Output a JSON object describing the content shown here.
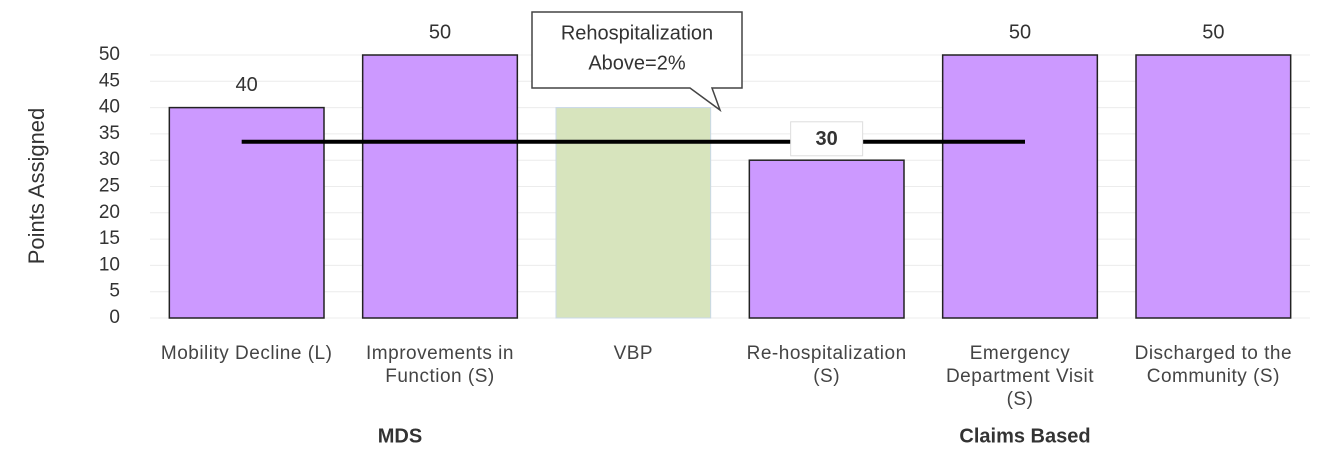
{
  "chart_data": {
    "type": "bar",
    "y_label": "Points Assigned",
    "categories": [
      "Mobility Decline (L)",
      "Improvements in Function (S)",
      "VBP",
      "Re-hospitalization (S)",
      "Emergency Department Visit (S)",
      "Discharged to the Community (S)"
    ],
    "values": [
      40,
      50,
      40,
      30,
      50,
      50
    ],
    "colors": [
      "#cc99ff",
      "#cc99ff",
      "#d7e4bd",
      "#cc99ff",
      "#cc99ff",
      "#cc99ff"
    ],
    "show_value_labels": [
      true,
      true,
      false,
      true,
      true,
      true
    ],
    "ylim": [
      0,
      50
    ],
    "yticks": [
      0,
      5,
      10,
      15,
      20,
      25,
      30,
      35,
      40,
      45,
      50
    ],
    "grid": true,
    "reference_line": 33.5,
    "callout": [
      "Rehospitalization",
      "Above=2%"
    ],
    "groups": [
      "MDS",
      "Claims Based"
    ]
  }
}
